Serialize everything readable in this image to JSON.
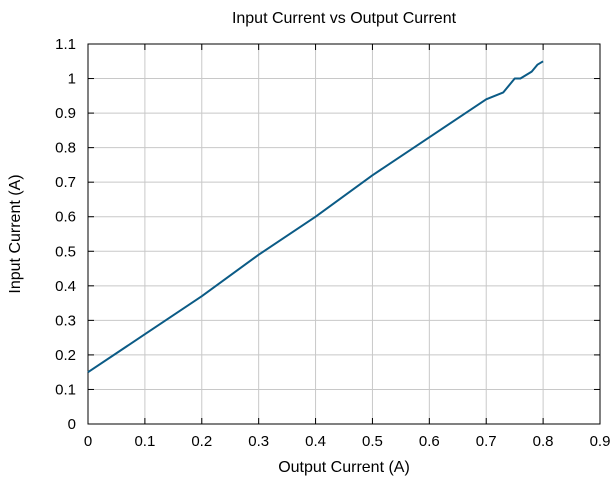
{
  "chart_data": {
    "type": "line",
    "title": "Input Current vs Output Current",
    "xlabel": "Output Current (A)",
    "ylabel": "Input Current (A)",
    "xlim": [
      0,
      0.9
    ],
    "ylim": [
      0,
      1.1
    ],
    "xticks": [
      "0",
      "0.1",
      "0.2",
      "0.3",
      "0.4",
      "0.5",
      "0.6",
      "0.7",
      "0.8",
      "0.9"
    ],
    "yticks": [
      "0",
      "0.1",
      "0.2",
      "0.3",
      "0.4",
      "0.5",
      "0.6",
      "0.7",
      "0.8",
      "0.9",
      "1",
      "1.1"
    ],
    "grid": true,
    "series": [
      {
        "color": "#0b5b86",
        "x": [
          0,
          0.1,
          0.2,
          0.3,
          0.4,
          0.5,
          0.6,
          0.7,
          0.73,
          0.75,
          0.76,
          0.78,
          0.79,
          0.8
        ],
        "y": [
          0.15,
          0.26,
          0.37,
          0.49,
          0.6,
          0.72,
          0.83,
          0.94,
          0.96,
          1.0,
          1.0,
          1.02,
          1.04,
          1.05
        ]
      }
    ]
  }
}
